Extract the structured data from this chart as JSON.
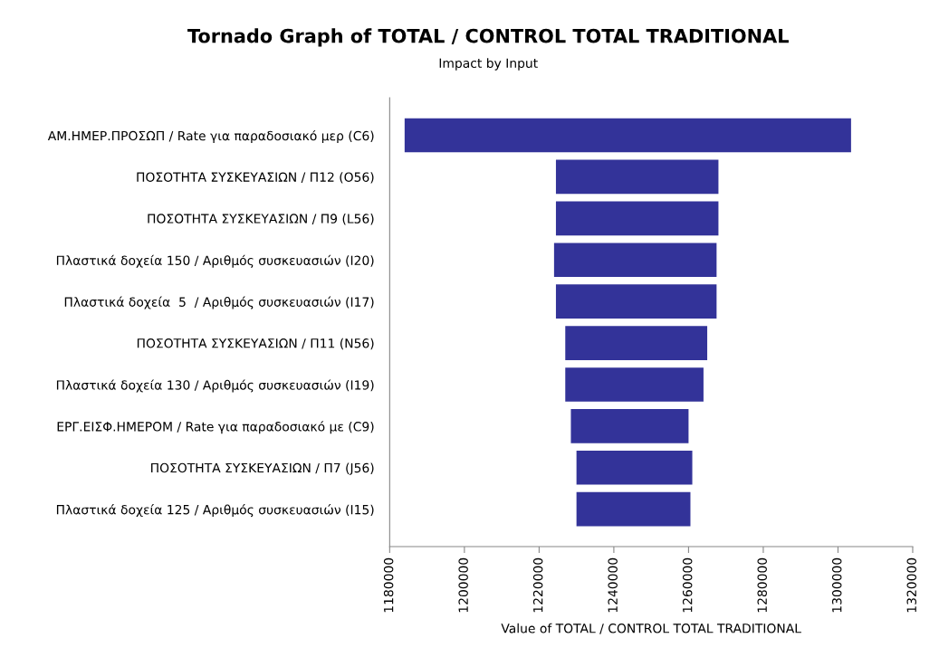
{
  "chart_data": {
    "type": "bar",
    "orientation": "horizontal",
    "title": "Tornado Graph of TOTAL / CONTROL TOTAL TRADITIONAL",
    "subtitle": "Impact by Input",
    "xlabel": "Value of TOTAL / CONTROL TOTAL TRADITIONAL",
    "categories": [
      "ΑΜ.ΗΜΕΡ.ΠΡΟΣΩΠ / Rate για παραδοσιακό μερ (C6)",
      "ΠΟΣΟΤΗΤΑ ΣΥΣΚΕΥΑΣΙΩΝ / Π12 (O56)",
      "ΠΟΣΟΤΗΤΑ ΣΥΣΚΕΥΑΣΙΩΝ / Π9 (L56)",
      "Πλαστικά δοχεία 150 / Αριθμός συσκευασιών (I20)",
      "Πλαστικά δοχεία  5  / Αριθμός συσκευασιών (I17)",
      "ΠΟΣΟΤΗΤΑ ΣΥΣΚΕΥΑΣΙΩΝ / Π11 (N56)",
      "Πλαστικά δοχεία 130 / Αριθμός συσκευασιών (I19)",
      "ΕΡΓ.ΕΙΣΦ.ΗΜΕΡΟΜ / Rate για παραδοσιακό με (C9)",
      "ΠΟΣΟΤΗΤΑ ΣΥΣΚΕΥΑΣΙΩΝ / Π7 (J56)",
      "Πλαστικά δοχεία 125 / Αριθμός συσκευασιών (I15)"
    ],
    "base": [
      1184000,
      1224500,
      1224500,
      1224000,
      1224500,
      1227000,
      1227000,
      1228500,
      1230000,
      1230000
    ],
    "values": [
      119500,
      43500,
      43500,
      43500,
      43000,
      38000,
      37000,
      31500,
      31000,
      30500
    ],
    "color": "#333399",
    "xlim": [
      1180000,
      1320000
    ],
    "xticks": [
      1180000,
      1200000,
      1220000,
      1240000,
      1260000,
      1280000,
      1300000,
      1320000
    ],
    "grid": false,
    "legend": false
  }
}
